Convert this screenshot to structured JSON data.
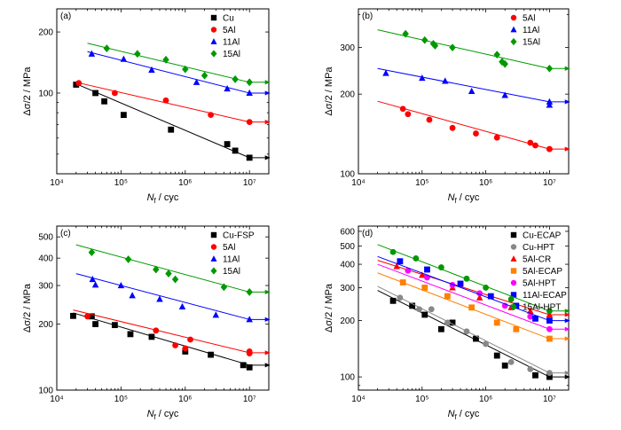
{
  "figure": {
    "background": "#ffffff"
  },
  "chart_data": [
    {
      "panel_label": "(a)",
      "type": "scatter",
      "x_scale": "log",
      "y_scale": "log",
      "xlim": [
        10000,
        20000000
      ],
      "ylim": [
        40,
        260
      ],
      "x_ticks": [
        10000,
        100000,
        1000000,
        10000000
      ],
      "x_tick_labels": [
        "10⁴",
        "10⁵",
        "10⁶",
        "10⁷"
      ],
      "y_ticks": [
        100,
        200
      ],
      "y_tick_labels": [
        "100",
        "200"
      ],
      "xlabel_main": "N",
      "xlabel_sub": "f",
      "xlabel_rest": " / cyc",
      "ylabel": "Δσ/2 / MPa",
      "legend_position": "top-right",
      "series": [
        {
          "name": "Cu",
          "color": "#000000",
          "marker": "square",
          "points": [
            [
              20000,
              110
            ],
            [
              40000,
              100
            ],
            [
              55000,
              91
            ],
            [
              110000,
              78
            ],
            [
              600000,
              66
            ],
            [
              4500000,
              56
            ],
            [
              6000000,
              52
            ],
            [
              10000000,
              48
            ]
          ],
          "fit": [
            [
              20000,
              111
            ],
            [
              10000000,
              48
            ]
          ],
          "runout_to": 18000000
        },
        {
          "name": "5Al",
          "color": "#ff0000",
          "marker": "circle",
          "points": [
            [
              22000,
              112
            ],
            [
              80000,
              100
            ],
            [
              500000,
              92
            ],
            [
              2500000,
              78
            ],
            [
              10000000,
              72
            ]
          ],
          "fit": [
            [
              20000,
              113
            ],
            [
              10000000,
              72
            ]
          ],
          "runout_to": 18000000
        },
        {
          "name": "11Al",
          "color": "#0000ff",
          "marker": "triangle",
          "points": [
            [
              35000,
              156
            ],
            [
              110000,
              147
            ],
            [
              300000,
              130
            ],
            [
              1500000,
              113
            ],
            [
              4500000,
              105
            ],
            [
              10000000,
              100
            ]
          ],
          "fit": [
            [
              30000,
              160
            ],
            [
              10000000,
              100
            ]
          ],
          "runout_to": 18000000
        },
        {
          "name": "15Al",
          "color": "#009900",
          "marker": "diamond",
          "points": [
            [
              60000,
              166
            ],
            [
              180000,
              156
            ],
            [
              500000,
              146
            ],
            [
              1000000,
              131
            ],
            [
              2000000,
              122
            ],
            [
              6000000,
              117
            ],
            [
              10000000,
              113
            ]
          ],
          "fit": [
            [
              30000,
              176
            ],
            [
              10000000,
              113
            ]
          ],
          "runout_to": 18000000
        }
      ]
    },
    {
      "panel_label": "(b)",
      "type": "scatter",
      "x_scale": "log",
      "y_scale": "log",
      "xlim": [
        10000,
        20000000
      ],
      "ylim": [
        100,
        420
      ],
      "x_ticks": [
        10000,
        100000,
        1000000,
        10000000
      ],
      "x_tick_labels": [
        "10⁴",
        "10⁵",
        "10⁶",
        "10⁷"
      ],
      "y_ticks": [
        100,
        200,
        300
      ],
      "y_tick_labels": [
        "100",
        "200",
        "300"
      ],
      "xlabel_main": "N",
      "xlabel_sub": "f",
      "xlabel_rest": " / cyc",
      "ylabel": "Δσ/2 / MPa",
      "legend_position": "top-right",
      "series": [
        {
          "name": "5Al",
          "color": "#ff0000",
          "marker": "circle",
          "points": [
            [
              50000,
              176
            ],
            [
              60000,
              168
            ],
            [
              130000,
              160
            ],
            [
              300000,
              149
            ],
            [
              700000,
              142
            ],
            [
              1500000,
              137
            ],
            [
              5000000,
              131
            ],
            [
              6000000,
              128
            ],
            [
              10000000,
              124
            ],
            [
              10000000,
              124
            ]
          ],
          "fit": [
            [
              20000,
              188
            ],
            [
              10000000,
              124
            ]
          ],
          "runout_to": 18000000
        },
        {
          "name": "11Al",
          "color": "#0000ff",
          "marker": "triangle",
          "points": [
            [
              27000,
              240
            ],
            [
              100000,
              230
            ],
            [
              230000,
              224
            ],
            [
              600000,
              205
            ],
            [
              2000000,
              198
            ],
            [
              10000000,
              187
            ],
            [
              10000000,
              182
            ]
          ],
          "fit": [
            [
              20000,
              250
            ],
            [
              10000000,
              187
            ]
          ],
          "runout_to": 18000000
        },
        {
          "name": "15Al",
          "color": "#009900",
          "marker": "diamond",
          "points": [
            [
              55000,
              338
            ],
            [
              110000,
              320
            ],
            [
              150000,
              310
            ],
            [
              160000,
              305
            ],
            [
              300000,
              300
            ],
            [
              1500000,
              282
            ],
            [
              1800000,
              265
            ],
            [
              2000000,
              260
            ],
            [
              10000000,
              250
            ]
          ],
          "fit": [
            [
              20000,
              350
            ],
            [
              10000000,
              250
            ]
          ],
          "runout_to": 18000000
        }
      ]
    },
    {
      "panel_label": "(c)",
      "type": "scatter",
      "x_scale": "log",
      "y_scale": "log",
      "xlim": [
        10000,
        20000000
      ],
      "ylim": [
        100,
        560
      ],
      "x_ticks": [
        10000,
        100000,
        1000000,
        10000000
      ],
      "x_tick_labels": [
        "10⁴",
        "10⁵",
        "10⁶",
        "10⁷"
      ],
      "y_ticks": [
        100,
        200,
        300,
        400,
        500
      ],
      "y_tick_labels": [
        "100",
        "200",
        "300",
        "400",
        "500"
      ],
      "xlabel_main": "N",
      "xlabel_sub": "f",
      "xlabel_rest": " / cyc",
      "ylabel": "Δσ/2 / MPa",
      "legend_position": "top-right",
      "series": [
        {
          "name": "Cu-FSP",
          "color": "#000000",
          "marker": "square",
          "points": [
            [
              18000,
              218
            ],
            [
              35000,
              217
            ],
            [
              40000,
              200
            ],
            [
              80000,
              198
            ],
            [
              140000,
              180
            ],
            [
              300000,
              175
            ],
            [
              1000000,
              150
            ],
            [
              2500000,
              145
            ],
            [
              8000000,
              130
            ],
            [
              10000000,
              127
            ]
          ],
          "fit": [
            [
              18000,
              225
            ],
            [
              10000000,
              130
            ]
          ],
          "runout_to": 18000000
        },
        {
          "name": "5Al",
          "color": "#ff0000",
          "marker": "circle",
          "points": [
            [
              30000,
              217
            ],
            [
              350000,
              187
            ],
            [
              700000,
              160
            ],
            [
              1000000,
              155
            ],
            [
              1200000,
              170
            ],
            [
              10000000,
              150
            ],
            [
              10000000,
              147
            ]
          ],
          "fit": [
            [
              18000,
              232
            ],
            [
              10000000,
              148
            ]
          ],
          "runout_to": 18000000
        },
        {
          "name": "11Al",
          "color": "#0000ff",
          "marker": "triangle",
          "points": [
            [
              36000,
              320
            ],
            [
              40000,
              302
            ],
            [
              100000,
              300
            ],
            [
              150000,
              270
            ],
            [
              400000,
              260
            ],
            [
              900000,
              240
            ],
            [
              3000000,
              220
            ],
            [
              10000000,
              210
            ]
          ],
          "fit": [
            [
              20000,
              340
            ],
            [
              10000000,
              210
            ]
          ],
          "runout_to": 18000000
        },
        {
          "name": "15Al",
          "color": "#009900",
          "marker": "diamond",
          "points": [
            [
              35000,
              425
            ],
            [
              130000,
              395
            ],
            [
              350000,
              355
            ],
            [
              550000,
              340
            ],
            [
              700000,
              320
            ],
            [
              4000000,
              295
            ],
            [
              10000000,
              280
            ]
          ],
          "fit": [
            [
              20000,
              460
            ],
            [
              10000000,
              280
            ]
          ],
          "runout_to": 18000000
        }
      ]
    },
    {
      "panel_label": "(d)",
      "type": "scatter",
      "x_scale": "log",
      "y_scale": "log",
      "xlim": [
        10000,
        20000000
      ],
      "ylim": [
        85,
        640
      ],
      "x_ticks": [
        10000,
        100000,
        1000000,
        10000000
      ],
      "x_tick_labels": [
        "10⁴",
        "10⁵",
        "10⁶",
        "10⁷"
      ],
      "y_ticks": [
        100,
        200,
        300,
        400,
        500,
        600
      ],
      "y_tick_labels": [
        "100",
        "200",
        "300",
        "400",
        "500",
        "600"
      ],
      "xlabel_main": "N",
      "xlabel_sub": "f",
      "xlabel_rest": " / cyc",
      "ylabel": "Δσ/2 / MPa",
      "legend_position": "top-right",
      "series": [
        {
          "name": "Cu-ECAP",
          "color": "#000000",
          "marker": "square",
          "points": [
            [
              35000,
              255
            ],
            [
              70000,
              240
            ],
            [
              110000,
              215
            ],
            [
              200000,
              180
            ],
            [
              300000,
              195
            ],
            [
              700000,
              160
            ],
            [
              1500000,
              130
            ],
            [
              2000000,
              115
            ],
            [
              6000000,
              102
            ],
            [
              10000000,
              100
            ]
          ],
          "fit": [
            [
              20000,
              290
            ],
            [
              10000000,
              100
            ]
          ],
          "runout_to": 18000000
        },
        {
          "name": "Cu-HPT",
          "color": "#888888",
          "marker": "circle",
          "points": [
            [
              45000,
              265
            ],
            [
              90000,
              230
            ],
            [
              140000,
              230
            ],
            [
              250000,
              195
            ],
            [
              500000,
              175
            ],
            [
              1000000,
              150
            ],
            [
              2500000,
              120
            ],
            [
              5000000,
              110
            ],
            [
              10000000,
              105
            ]
          ],
          "fit": [
            [
              20000,
              305
            ],
            [
              10000000,
              105
            ]
          ],
          "runout_to": 18000000
        },
        {
          "name": "5Al-CR",
          "color": "#ff0000",
          "marker": "triangle",
          "points": [
            [
              40000,
              390
            ],
            [
              100000,
              350
            ],
            [
              300000,
              300
            ],
            [
              800000,
              265
            ],
            [
              2500000,
              235
            ],
            [
              5000000,
              225
            ],
            [
              10000000,
              215
            ]
          ],
          "fit": [
            [
              20000,
              420
            ],
            [
              10000000,
              215
            ]
          ],
          "runout_to": 18000000
        },
        {
          "name": "5Al-ECAP",
          "color": "#ff8000",
          "marker": "square",
          "points": [
            [
              50000,
              320
            ],
            [
              110000,
              300
            ],
            [
              250000,
              270
            ],
            [
              600000,
              235
            ],
            [
              1500000,
              195
            ],
            [
              3000000,
              180
            ],
            [
              10000000,
              160
            ]
          ],
          "fit": [
            [
              20000,
              360
            ],
            [
              10000000,
              160
            ]
          ],
          "runout_to": 18000000
        },
        {
          "name": "5Al-HPT",
          "color": "#ff00ff",
          "marker": "circle",
          "points": [
            [
              60000,
              370
            ],
            [
              120000,
              340
            ],
            [
              300000,
              310
            ],
            [
              800000,
              280
            ],
            [
              2000000,
              240
            ],
            [
              5000000,
              210
            ],
            [
              10000000,
              180
            ]
          ],
          "fit": [
            [
              20000,
              400
            ],
            [
              10000000,
              180
            ]
          ],
          "runout_to": 18000000
        },
        {
          "name": "11Al-ECAP",
          "color": "#0000ff",
          "marker": "square",
          "points": [
            [
              45000,
              415
            ],
            [
              120000,
              375
            ],
            [
              400000,
              315
            ],
            [
              1200000,
              270
            ],
            [
              3000000,
              240
            ],
            [
              6000000,
              205
            ],
            [
              10000000,
              200
            ]
          ],
          "fit": [
            [
              20000,
              440
            ],
            [
              10000000,
              200
            ]
          ],
          "runout_to": 18000000
        },
        {
          "name": "15Al-HPT",
          "color": "#009900",
          "marker": "circle",
          "points": [
            [
              35000,
              465
            ],
            [
              80000,
              430
            ],
            [
              200000,
              385
            ],
            [
              500000,
              335
            ],
            [
              1000000,
              300
            ],
            [
              2500000,
              260
            ],
            [
              10000000,
              225
            ]
          ],
          "fit": [
            [
              20000,
              510
            ],
            [
              10000000,
              225
            ]
          ],
          "runout_to": 18000000
        }
      ]
    }
  ]
}
